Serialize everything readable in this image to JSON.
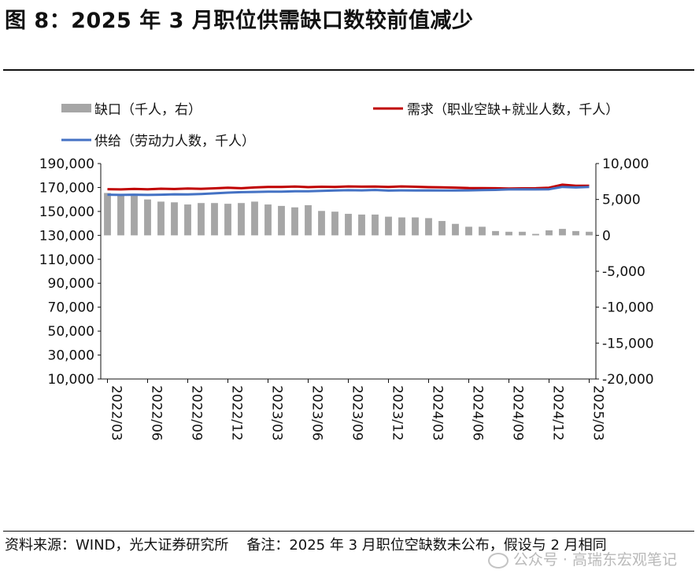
{
  "title": "图 8：2025 年 3 月职位供需缺口数较前值减少",
  "footer": {
    "source": "资料来源：WIND，光大证券研究所",
    "note": "备注：2025 年 3 月职位空缺数未公布，假设与 2 月相同"
  },
  "watermark": "公众号 · 高瑞东宏观笔记",
  "chart_data": {
    "type": "bar+line",
    "legend": [
      "缺口（千人，右）",
      "需求（职业空缺+就业人数，千人）",
      "供给（劳动力人数，千人）"
    ],
    "x_ticks": [
      "2022/03",
      "2022/06",
      "2022/09",
      "2022/12",
      "2023/03",
      "2023/06",
      "2023/09",
      "2023/12",
      "2024/03",
      "2024/06",
      "2024/09",
      "2024/12",
      "2025/03"
    ],
    "y_left_ticks": [
      "190,000",
      "170,000",
      "150,000",
      "130,000",
      "110,000",
      "90,000",
      "70,000",
      "50,000",
      "30,000",
      "10,000"
    ],
    "y_right_ticks": [
      "10,000",
      "5,000",
      "0",
      "-5,000",
      "-10,000",
      "-15,000",
      "-20,000"
    ],
    "y_left_range": [
      10000,
      190000
    ],
    "y_right_range": [
      -20000,
      10000
    ],
    "colors": {
      "gap": "#a6a6a6",
      "demand": "#c00000",
      "supply": "#4472c4"
    },
    "months": 37,
    "gap": [
      5900,
      5700,
      5500,
      5000,
      4700,
      4600,
      4300,
      4500,
      4500,
      4400,
      4500,
      4700,
      4300,
      4100,
      3900,
      4200,
      3400,
      3300,
      3000,
      2900,
      2900,
      2600,
      2500,
      2500,
      2400,
      2000,
      1600,
      1200,
      1200,
      600,
      500,
      500,
      200,
      700,
      900,
      600,
      500
    ],
    "demand": [
      168600,
      168400,
      168800,
      168500,
      169000,
      168700,
      169200,
      168900,
      169300,
      169800,
      169400,
      170000,
      170400,
      170500,
      170800,
      170300,
      170600,
      170400,
      170900,
      170700,
      170800,
      170500,
      170900,
      170600,
      170300,
      170100,
      169900,
      169600,
      169500,
      169400,
      169200,
      169300,
      169400,
      169800,
      172300,
      171500,
      171400
    ],
    "supply": [
      164000,
      163800,
      164000,
      163800,
      164000,
      164300,
      164200,
      164600,
      165100,
      165700,
      166100,
      166300,
      166500,
      166500,
      166800,
      166900,
      167200,
      167500,
      167700,
      167600,
      167900,
      167400,
      167600,
      167500,
      167600,
      167500,
      167500,
      167600,
      167800,
      168000,
      168400,
      168500,
      168400,
      168500,
      170500,
      170000,
      170400
    ]
  }
}
